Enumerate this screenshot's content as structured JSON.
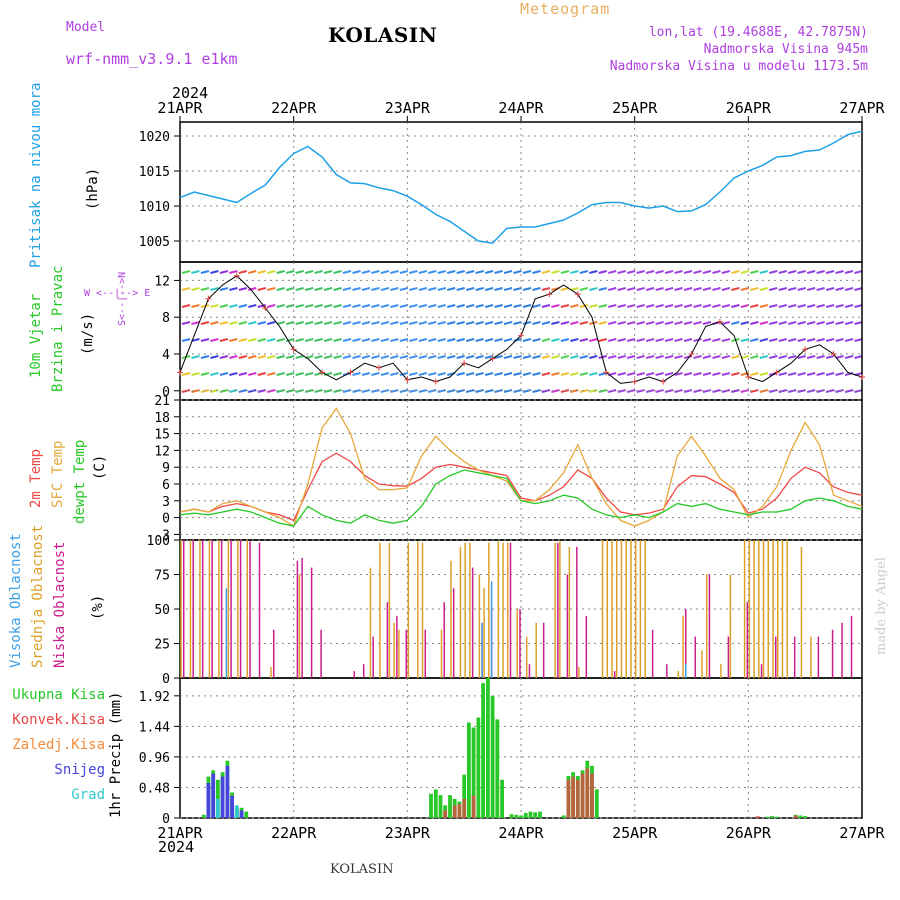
{
  "header": {
    "model_label": "Model",
    "model_name": "wrf-nmm_v3.9.1 e1km",
    "station": "KOLASIN",
    "meteogram": "Meteogram",
    "lonlat": "lon,lat (19.4688E, 42.7875N)",
    "elev": "Nadmorska Visina 945m",
    "elev_model": "Nadmorska Visina u modelu 1173.5m",
    "year_top": "2024",
    "year_bottom": "2024",
    "footer_station": "KOLASIN",
    "credit": "made by Angel"
  },
  "x_ticks": [
    "21APR",
    "22APR",
    "23APR",
    "24APR",
    "25APR",
    "26APR",
    "27APR"
  ],
  "panel_labels": {
    "pressure": {
      "title": "Pritisak na nivou mora",
      "unit": "(hPa)"
    },
    "wind": {
      "title1": "10m Vjetar",
      "title2": "Brzina i Pravac",
      "unit": "(m/s)",
      "compass": "W <--|--> E",
      "compass_v": "S<--|-->N"
    },
    "temp": {
      "t2m": "2m Temp",
      "sfc": "SFC Temp",
      "dew": "dewpt Temp",
      "unit": "(C)"
    },
    "cloud": {
      "high": "Visoka Oblacnost",
      "mid": "Srednja Oblacnost",
      "low": "Niska Oblacnost",
      "unit": "(%)"
    },
    "precip": {
      "total": "Ukupna Kisa",
      "conv": "Konvek.Kisa",
      "frz": "Zaledj.Kisa",
      "snow": "Snijeg",
      "grad": "Grad",
      "unit": "1hr Precip (mm)"
    }
  },
  "colors": {
    "pressure": "#1ea0e6",
    "t2m": "#f04848",
    "sfc": "#e6a83c",
    "dew": "#28c828",
    "high": "#3ca0e6",
    "mid": "#dca028",
    "low": "#c81e8c",
    "total": "#28c828",
    "conv": "#e64646",
    "frz": "#f08c3c",
    "snow": "#4646dc",
    "grad": "#32c8c8",
    "grid": "#888888"
  },
  "chart_data": [
    {
      "type": "line",
      "panel": "pressure",
      "ylabel": "(hPa)",
      "yticks": [
        1005,
        1010,
        1015,
        1020
      ],
      "ylim": [
        1002,
        1022
      ],
      "x_hours": [
        0,
        3,
        6,
        9,
        12,
        15,
        18,
        21,
        24,
        27,
        30,
        33,
        36,
        39,
        42,
        45,
        48,
        51,
        54,
        57,
        60,
        63,
        66,
        69,
        72,
        75,
        78,
        81,
        84,
        87,
        90,
        93,
        96,
        99,
        102,
        105,
        108,
        111,
        114,
        117,
        120,
        123,
        126,
        129,
        132,
        135,
        138,
        141,
        144
      ],
      "series": [
        {
          "name": "Pritisak na nivou mora",
          "values": [
            1011.2,
            1012.0,
            1011.5,
            1011.0,
            1010.5,
            1011.8,
            1013.0,
            1015.5,
            1017.5,
            1018.5,
            1017.0,
            1014.5,
            1013.3,
            1013.2,
            1012.6,
            1012.2,
            1011.4,
            1010.2,
            1008.8,
            1007.8,
            1006.4,
            1005.0,
            1004.7,
            1006.8,
            1007.0,
            1007.0,
            1007.5,
            1008.0,
            1009.0,
            1010.2,
            1010.5,
            1010.5,
            1010.0,
            1009.7,
            1010.0,
            1009.2,
            1009.3,
            1010.2,
            1012.0,
            1014.0,
            1015.0,
            1015.8,
            1017.0,
            1017.2,
            1017.8,
            1018.0,
            1019.0,
            1020.2,
            1020.7
          ]
        }
      ]
    },
    {
      "type": "line",
      "panel": "wind",
      "ylabel": "(m/s)",
      "yticks": [
        0,
        4,
        8,
        12
      ],
      "ylim": [
        -1,
        14
      ],
      "x_hours": [
        0,
        3,
        6,
        9,
        12,
        15,
        18,
        21,
        24,
        27,
        30,
        33,
        36,
        39,
        42,
        45,
        48,
        51,
        54,
        57,
        60,
        63,
        66,
        69,
        72,
        75,
        78,
        81,
        84,
        87,
        90,
        93,
        96,
        99,
        102,
        105,
        108,
        111,
        114,
        117,
        120,
        123,
        126,
        129,
        132,
        135,
        138,
        141,
        144
      ],
      "series": [
        {
          "name": "Brzina",
          "values": [
            2.0,
            6.0,
            10.0,
            11.5,
            12.5,
            11.0,
            9.0,
            7.0,
            4.5,
            3.5,
            2.0,
            1.2,
            2.0,
            3.0,
            2.5,
            3.0,
            1.2,
            1.5,
            1.0,
            1.5,
            3.0,
            2.5,
            3.5,
            4.5,
            6.0,
            10.0,
            10.5,
            11.5,
            10.5,
            8.0,
            2.0,
            0.8,
            1.0,
            1.5,
            1.0,
            2.0,
            4.0,
            7.0,
            7.5,
            6.0,
            1.5,
            1.0,
            2.0,
            3.0,
            4.5,
            5.0,
            4.0,
            2.0,
            1.5
          ]
        }
      ],
      "band_hours": [
        [
          0,
          19
        ],
        [
          75,
          90
        ],
        [
          115,
          124
        ]
      ]
    },
    {
      "type": "line",
      "panel": "temp",
      "ylabel": "(C)",
      "yticks": [
        -3,
        0,
        3,
        6,
        9,
        12,
        15,
        18,
        21
      ],
      "ylim": [
        -4,
        21
      ],
      "x_hours": [
        0,
        3,
        6,
        9,
        12,
        15,
        18,
        21,
        24,
        27,
        30,
        33,
        36,
        39,
        42,
        45,
        48,
        51,
        54,
        57,
        60,
        63,
        66,
        69,
        72,
        75,
        78,
        81,
        84,
        87,
        90,
        93,
        96,
        99,
        102,
        105,
        108,
        111,
        114,
        117,
        120,
        123,
        126,
        129,
        132,
        135,
        138,
        141,
        144
      ],
      "series": [
        {
          "name": "2m Temp",
          "values": [
            1.0,
            1.5,
            1.0,
            2.0,
            2.5,
            2.0,
            1.0,
            0.5,
            -0.5,
            5.0,
            10.0,
            11.5,
            10.0,
            7.5,
            6.0,
            5.7,
            5.6,
            7.0,
            9.0,
            9.5,
            9.0,
            8.5,
            8.0,
            7.5,
            3.5,
            3.0,
            4.0,
            5.5,
            8.5,
            7.0,
            3.5,
            1.0,
            0.5,
            0.8,
            1.5,
            5.5,
            7.5,
            7.3,
            6.0,
            4.5,
            0.8,
            1.5,
            3.5,
            7.0,
            9.0,
            8.0,
            5.5,
            4.5,
            4.0
          ]
        },
        {
          "name": "SFC Temp",
          "values": [
            1.0,
            1.5,
            1.0,
            2.5,
            3.0,
            2.0,
            1.0,
            0.0,
            -1.5,
            6.0,
            16.0,
            19.5,
            15.0,
            7.0,
            5.0,
            5.0,
            5.3,
            11.0,
            14.5,
            12.0,
            10.0,
            8.5,
            7.5,
            6.5,
            3.0,
            3.0,
            5.0,
            8.0,
            13.0,
            7.0,
            2.5,
            -0.5,
            -1.5,
            -0.5,
            1.0,
            11.0,
            14.5,
            11.0,
            7.0,
            5.0,
            0.0,
            2.0,
            5.5,
            12.0,
            17.0,
            13.0,
            4.0,
            3.0,
            2.0
          ]
        },
        {
          "name": "dewpt Temp",
          "values": [
            0.5,
            0.8,
            0.5,
            1.0,
            1.5,
            1.0,
            0.0,
            -1.0,
            -1.5,
            2.0,
            0.5,
            -0.5,
            -1.0,
            0.5,
            -0.5,
            -1.0,
            -0.5,
            2.0,
            6.0,
            7.5,
            8.5,
            8.0,
            7.5,
            7.0,
            3.0,
            2.5,
            3.0,
            4.0,
            3.5,
            1.5,
            0.5,
            0.0,
            0.5,
            0.0,
            1.0,
            2.5,
            2.0,
            2.5,
            1.5,
            1.0,
            0.5,
            1.0,
            1.0,
            1.5,
            3.0,
            3.5,
            3.0,
            2.0,
            1.5
          ]
        }
      ]
    },
    {
      "type": "bar",
      "panel": "cloud",
      "ylabel": "(%)",
      "yticks": [
        0,
        25,
        50,
        75,
        100
      ],
      "ylim": [
        0,
        100
      ],
      "series": [
        {
          "name": "Niska Oblacnost",
          "hours": [
            1,
            3,
            5,
            7,
            9,
            11,
            13,
            15,
            17,
            20,
            25,
            26,
            28,
            30,
            37,
            39,
            41,
            44,
            46,
            48,
            52,
            56,
            58,
            62,
            64,
            66,
            70,
            72,
            74,
            77,
            80,
            82,
            84,
            86,
            92,
            100,
            103,
            107,
            109,
            112,
            116,
            120,
            123,
            126,
            130,
            135,
            138,
            140,
            142
          ],
          "values": [
            100,
            100,
            100,
            100,
            100,
            100,
            100,
            99,
            98,
            35,
            85,
            87,
            80,
            35,
            5,
            10,
            30,
            55,
            45,
            35,
            35,
            55,
            65,
            80,
            40,
            50,
            98,
            50,
            10,
            40,
            98,
            75,
            95,
            45,
            5,
            35,
            10,
            50,
            30,
            75,
            30,
            55,
            10,
            30,
            30,
            30,
            35,
            40,
            45
          ]
        },
        {
          "name": "Srednja Oblacnost",
          "hours": [
            0,
            2,
            4,
            6,
            8,
            10,
            12,
            14,
            19,
            25,
            40,
            42,
            44,
            45,
            46,
            48,
            50,
            51,
            55,
            57,
            59,
            60,
            61,
            63,
            64,
            65,
            67,
            68,
            69,
            71,
            73,
            75,
            79,
            80,
            82,
            84,
            89,
            90,
            91,
            92,
            93,
            94,
            95,
            96,
            97,
            98,
            105,
            106,
            110,
            111,
            114,
            116,
            119,
            120,
            121,
            122,
            123,
            124,
            125,
            126,
            127,
            128,
            131,
            133
          ],
          "values": [
            100,
            100,
            100,
            100,
            100,
            100,
            100,
            100,
            8,
            75,
            80,
            98,
            98,
            40,
            35,
            98,
            99,
            98,
            35,
            85,
            95,
            98,
            98,
            75,
            65,
            98,
            99,
            98,
            98,
            50,
            30,
            40,
            98,
            99,
            95,
            8,
            100,
            100,
            100,
            100,
            100,
            100,
            100,
            100,
            100,
            100,
            5,
            45,
            20,
            75,
            10,
            75,
            100,
            100,
            100,
            100,
            100,
            100,
            100,
            100,
            100,
            100,
            95,
            30
          ]
        },
        {
          "name": "Visoka Oblacnost",
          "hours": [
            10,
            64,
            66,
            107
          ],
          "values": [
            65,
            40,
            70,
            10
          ]
        }
      ]
    },
    {
      "type": "bar",
      "panel": "precip",
      "ylabel": "1hr Precip (mm)",
      "yticks": [
        0,
        0.48,
        0.96,
        1.44,
        1.92
      ],
      "ylim": [
        0,
        2.2
      ],
      "series": [
        {
          "name": "Ukupna Kisa",
          "hours": [
            5,
            6,
            7,
            8,
            9,
            10,
            11,
            12,
            13,
            14,
            53,
            54,
            55,
            56,
            57,
            58,
            59,
            60,
            61,
            62,
            63,
            64,
            65,
            66,
            67,
            68,
            70,
            71,
            72,
            73,
            74,
            75,
            76,
            81,
            82,
            83,
            84,
            85,
            86,
            87,
            88,
            124,
            125,
            126,
            130,
            131,
            132
          ],
          "values": [
            0.05,
            0.65,
            0.75,
            0.6,
            0.72,
            0.9,
            0.4,
            0.18,
            0.16,
            0.1,
            0.38,
            0.45,
            0.36,
            0.2,
            0.36,
            0.3,
            0.26,
            0.68,
            1.5,
            1.42,
            1.58,
            2.12,
            2.2,
            1.92,
            1.55,
            0.6,
            0.06,
            0.05,
            0.04,
            0.08,
            0.1,
            0.09,
            0.1,
            0.04,
            0.66,
            0.72,
            0.66,
            0.75,
            0.9,
            0.82,
            0.45,
            0.02,
            0.03,
            0.02,
            0.05,
            0.04,
            0.03
          ]
        },
        {
          "name": "Snijeg",
          "hours": [
            6,
            7,
            9,
            10,
            11,
            12,
            13
          ],
          "values": [
            0.55,
            0.7,
            0.65,
            0.82,
            0.35,
            0.15,
            0.12
          ]
        },
        {
          "name": "Konvek.Kisa",
          "hours": [
            56,
            58,
            59,
            60,
            62,
            82,
            83,
            84,
            85,
            86,
            87,
            122,
            130
          ],
          "values": [
            0.12,
            0.2,
            0.22,
            0.3,
            0.35,
            0.6,
            0.65,
            0.6,
            0.7,
            0.78,
            0.7,
            0.03,
            0.04
          ]
        },
        {
          "name": "Grad",
          "hours": [
            8,
            12
          ],
          "values": [
            0.3,
            0.2
          ]
        }
      ]
    }
  ]
}
